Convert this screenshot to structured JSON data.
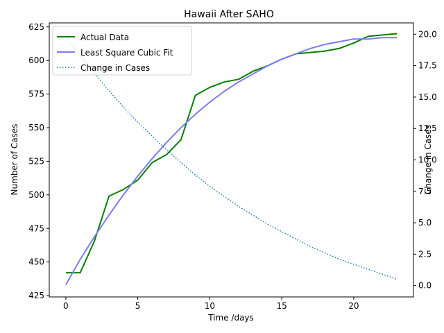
{
  "chart_data": {
    "type": "line",
    "title": "Hawaii After SAHO",
    "xlabel": "Time /days",
    "ylabel_left": "Number of Cases",
    "ylabel_right": "Change in Cases",
    "xlim": [
      -1.15,
      24.15
    ],
    "ylim_left": [
      424,
      628
    ],
    "ylim_right": [
      -0.9,
      20.9
    ],
    "x_ticks": [
      0,
      5,
      10,
      15,
      20
    ],
    "y_ticks_left": [
      425,
      450,
      475,
      500,
      525,
      550,
      575,
      600,
      625
    ],
    "y_ticks_right": [
      0.0,
      2.5,
      5.0,
      7.5,
      10.0,
      12.5,
      15.0,
      17.5,
      20.0
    ],
    "legend_position": "top-left",
    "x": [
      0,
      1,
      2,
      3,
      4,
      5,
      6,
      7,
      8,
      9,
      10,
      11,
      12,
      13,
      14,
      15,
      16,
      17,
      18,
      19,
      20,
      21,
      22,
      23
    ],
    "series": [
      {
        "name": "Actual Data",
        "axis": "left",
        "color": "#008000",
        "style": "solid",
        "values": [
          442,
          442,
          466,
          499,
          504,
          511,
          524,
          530,
          541,
          574,
          580,
          584,
          586,
          592,
          596,
          601,
          605,
          606,
          607,
          609,
          613,
          618,
          619,
          620
        ]
      },
      {
        "name": "Least Square Cubic Fit",
        "axis": "left",
        "color": "#7b7bf0",
        "style": "solid",
        "values": [
          433,
          452,
          469,
          485,
          500,
          514,
          527,
          539,
          550,
          560,
          569,
          577,
          584,
          590,
          596,
          601,
          605,
          609,
          612,
          614,
          616,
          616,
          617,
          617
        ]
      },
      {
        "name": "Change in Cases",
        "axis": "right",
        "color": "#1f77b4",
        "style": "dotted",
        "values": [
          19.8,
          18.3,
          16.9,
          15.5,
          14.2,
          13.0,
          11.9,
          10.8,
          9.8,
          8.8,
          7.9,
          7.1,
          6.3,
          5.6,
          4.9,
          4.3,
          3.7,
          3.1,
          2.6,
          2.1,
          1.7,
          1.3,
          0.9,
          0.5
        ]
      }
    ]
  }
}
